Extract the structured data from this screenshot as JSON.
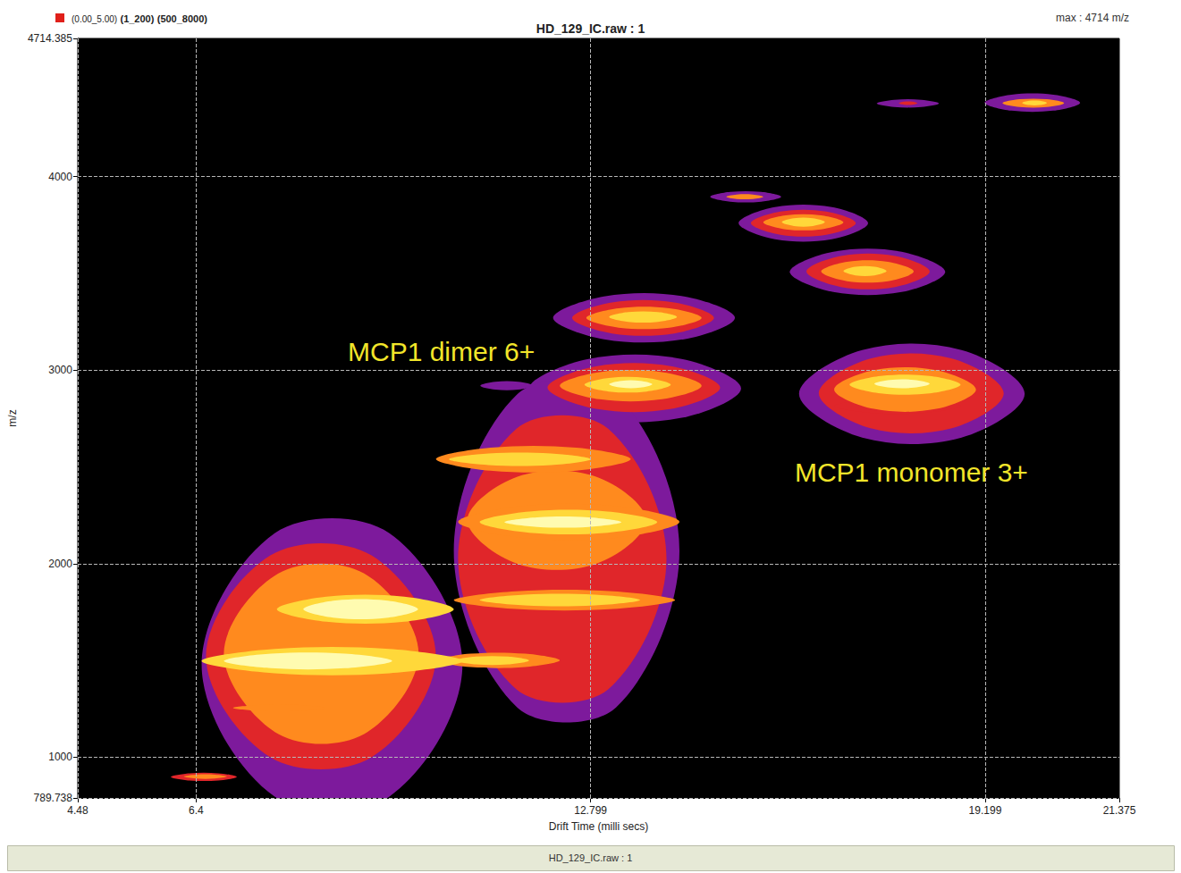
{
  "chart_data": {
    "type": "heatmap",
    "title": "HD_129_IC.raw : 1",
    "header": [
      "(0.00_5.00)",
      "(1_200)",
      "(500_8000)"
    ],
    "header_right": "max : 4714 m/z",
    "footer": "HD_129_IC.raw : 1",
    "x_label": "Drift Time (milli secs)",
    "y_label": "m/z",
    "xlim": [
      4.48,
      21.375
    ],
    "xticks": [
      4.48,
      6.4,
      12.799,
      19.199,
      21.375
    ],
    "ylim": [
      789.738,
      4714.385
    ],
    "yticks": [
      789.738,
      1000,
      2000,
      3000,
      4000,
      4714.385
    ],
    "grid": true,
    "color_scale": [
      "#7d1a9c",
      "#e0262a",
      "#ff8a1e",
      "#ffd83a",
      "#fffbb0"
    ],
    "cells": [
      [
        19.19,
        20.74,
        4341,
        4424,
        1
      ],
      [
        19.48,
        20.48,
        4360,
        4400,
        3
      ],
      [
        19.8,
        20.2,
        4370,
        4392,
        4
      ],
      [
        17.44,
        18.45,
        4360,
        4397,
        1
      ],
      [
        17.8,
        18.1,
        4372,
        4388,
        2
      ],
      [
        14.74,
        15.89,
        3871,
        3921,
        1
      ],
      [
        15.0,
        15.6,
        3885,
        3908,
        3
      ],
      [
        15.2,
        17.3,
        3677,
        3843,
        1
      ],
      [
        15.4,
        17.1,
        3700,
        3820,
        2
      ],
      [
        15.6,
        16.9,
        3728,
        3800,
        3
      ],
      [
        15.9,
        16.6,
        3745,
        3785,
        4
      ],
      [
        16.03,
        18.55,
        3404,
        3612,
        1
      ],
      [
        16.3,
        18.3,
        3430,
        3590,
        2
      ],
      [
        16.54,
        18.04,
        3460,
        3560,
        3
      ],
      [
        16.9,
        17.6,
        3490,
        3535,
        4
      ],
      [
        12.19,
        15.14,
        3160,
        3381,
        1
      ],
      [
        12.5,
        14.8,
        3190,
        3350,
        2
      ],
      [
        12.73,
        14.6,
        3220,
        3320,
        3
      ],
      [
        13.1,
        14.2,
        3250,
        3300,
        4
      ],
      [
        11.01,
        11.87,
        2900,
        2940,
        1
      ],
      [
        11.8,
        15.24,
        2754,
        3058,
        1
      ],
      [
        12.1,
        14.9,
        2800,
        3020,
        2
      ],
      [
        12.3,
        14.6,
        2850,
        2990,
        3
      ],
      [
        12.7,
        14.1,
        2890,
        2960,
        4
      ],
      [
        13.1,
        13.8,
        2910,
        2945,
        5
      ],
      [
        16.18,
        19.84,
        2652,
        3104,
        1
      ],
      [
        16.5,
        19.5,
        2700,
        3060,
        2
      ],
      [
        16.75,
        18.8,
        2780,
        2850,
        2
      ],
      [
        16.75,
        19.05,
        2800,
        3000,
        3
      ],
      [
        17.0,
        18.8,
        2880,
        2970,
        4
      ],
      [
        17.4,
        18.3,
        2910,
        2950,
        5
      ],
      [
        10.58,
        14.24,
        1258,
        2874,
        1
      ],
      [
        10.65,
        14.03,
        1351,
        2698,
        2
      ],
      [
        10.8,
        13.7,
        2000,
        2450,
        3
      ],
      [
        10.29,
        13.45,
        2481,
        2600,
        3
      ],
      [
        10.5,
        12.8,
        2510,
        2570,
        4
      ],
      [
        10.65,
        14.24,
        2135,
        2297,
        3
      ],
      [
        11.0,
        13.88,
        2160,
        2270,
        4
      ],
      [
        11.4,
        13.3,
        2190,
        2240,
        5
      ],
      [
        10.58,
        14.17,
        1766,
        1858,
        3
      ],
      [
        11.0,
        13.6,
        1785,
        1840,
        4
      ],
      [
        10.29,
        12.3,
        1466,
        1535,
        3
      ],
      [
        10.6,
        11.8,
        1480,
        1520,
        4
      ],
      [
        6.49,
        10.72,
        797,
        2158,
        1
      ],
      [
        6.56,
        10.29,
        1000,
        2043,
        2
      ],
      [
        6.85,
        10.01,
        1120,
        1950,
        3
      ],
      [
        7.71,
        10.58,
        1700,
        1830,
        4
      ],
      [
        8.14,
        10.0,
        1720,
        1810,
        5
      ],
      [
        6.49,
        10.72,
        1434,
        1560,
        4
      ],
      [
        6.85,
        9.58,
        1460,
        1535,
        5
      ],
      [
        7.0,
        8.5,
        1240,
        1270,
        3
      ],
      [
        5.99,
        7.06,
        880,
        917,
        2
      ],
      [
        6.2,
        6.9,
        890,
        910,
        3
      ]
    ],
    "annotations": [
      {
        "text": "MCP1 dimer 6+",
        "x": 8.86,
        "y": 3095
      },
      {
        "text": "MCP1 monomer 3+",
        "x": 16.11,
        "y": 2472
      }
    ]
  }
}
